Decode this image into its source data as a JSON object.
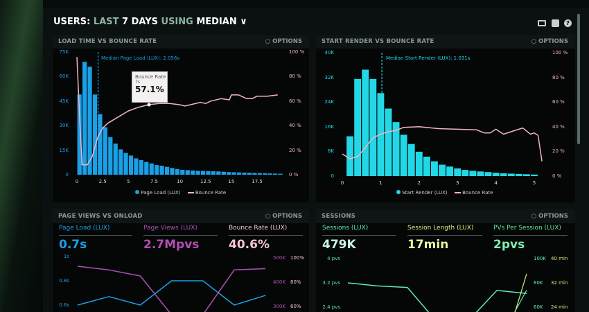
{
  "header": {
    "prefix": "USERS:",
    "last": "LAST",
    "days": "7 DAYS",
    "using": "USING",
    "method": "MEDIAN",
    "icons": [
      "monitor-icon",
      "share-icon",
      "help-icon"
    ]
  },
  "options_label": "OPTIONS",
  "colors": {
    "page_load": "#1aa0e6",
    "bounce": "#f3b3c6",
    "start_render": "#22d8e6",
    "page_views": "#b050b0",
    "sessions": "#5ee8c2",
    "session_length": "#d7f07a"
  },
  "chart_data": [
    {
      "type": "bar",
      "title": "LOAD TIME VS BOUNCE RATE",
      "xticks": [
        "0",
        "2.5",
        "5",
        "7.5",
        "10",
        "12.5",
        "15",
        "17.5"
      ],
      "xtick_values": [
        0,
        2.5,
        5,
        7.5,
        10,
        12.5,
        15,
        17.5
      ],
      "yticks_left": [
        "0",
        "15K",
        "30K",
        "45K",
        "60K",
        "75K"
      ],
      "yticks_right": [
        "0 %",
        "20 %",
        "40 %",
        "60 %",
        "80 %",
        "100 %"
      ],
      "ylim_left": [
        0,
        75
      ],
      "ylim_right": [
        0,
        100
      ],
      "median_label": "Median Page Load (LUX): 2.056s",
      "median": 2.056,
      "bar_width": 0.5,
      "bars": [
        49,
        69,
        66,
        49,
        37,
        29,
        23,
        19,
        15.5,
        13.3,
        11.7,
        10,
        8.9,
        7.8,
        6.9,
        5.9,
        5.5,
        4.8,
        4.1,
        3.5,
        3,
        2.8,
        2.6,
        2.4,
        2.3,
        2.2,
        2.1,
        2,
        1.8,
        1.6,
        1.5,
        1.4,
        1.3,
        1.2,
        1.1,
        1,
        0.9,
        0.8,
        0.7,
        0.6
      ],
      "line": {
        "name": "Bounce Rate",
        "x": [
          0,
          0.3,
          0.5,
          1,
          1.5,
          2,
          2.5,
          3,
          4,
          5,
          6,
          7,
          8,
          9,
          10,
          10.5,
          11,
          12,
          12.5,
          13,
          14,
          14.8,
          15,
          15.7,
          16.5,
          17,
          17.5,
          18.5,
          19.5
        ],
        "y": [
          96,
          40,
          8,
          8,
          15,
          30,
          38,
          42,
          47,
          52,
          55,
          57.1,
          58,
          58,
          57,
          56,
          57,
          59,
          58,
          60,
          62,
          61,
          65,
          65,
          62,
          62,
          64,
          64,
          65
        ]
      },
      "tooltip": {
        "title": "Bounce Rate",
        "x": "7s",
        "value": "57.1%"
      },
      "legend": [
        "Page Load (LUX)",
        "Bounce Rate"
      ]
    },
    {
      "type": "bar",
      "title": "START RENDER VS BOUNCE RATE",
      "xticks": [
        "0",
        "1",
        "2",
        "3",
        "4",
        "5"
      ],
      "xtick_values": [
        0,
        1,
        2,
        3,
        4,
        5
      ],
      "yticks_left": [
        "0",
        "8K",
        "16K",
        "24K",
        "32K",
        "40K"
      ],
      "yticks_right": [
        "0 %",
        "20 %",
        "40 %",
        "60 %",
        "80 %",
        "100 %"
      ],
      "ylim_left": [
        0,
        40
      ],
      "ylim_right": [
        0,
        100
      ],
      "median_label": "Median Start Render (LUX): 1.031s",
      "median": 1.031,
      "bar_width": 0.2,
      "bars": [
        12.9,
        31.5,
        34.5,
        31.5,
        26.9,
        21.9,
        17.5,
        13.4,
        10.4,
        7.9,
        6.3,
        4.8,
        3.7,
        3.1,
        2.5,
        2,
        1.7,
        1.5,
        1.3,
        1.1,
        0.9,
        0.8,
        0.7,
        0.6,
        0.5
      ],
      "line": {
        "name": "Bounce Rate",
        "x": [
          0,
          0.2,
          0.4,
          0.6,
          0.8,
          1,
          1.2,
          1.4,
          1.6,
          2,
          2.5,
          3,
          3.5,
          3.7,
          3.85,
          4,
          4.2,
          4.5,
          4.7,
          4.9,
          5,
          5.1,
          5.2
        ],
        "y": [
          18,
          14,
          16,
          23,
          31,
          34,
          36,
          37,
          39.5,
          40,
          38.5,
          38,
          37.5,
          35,
          35,
          38,
          34,
          37,
          39,
          34,
          35,
          33,
          12
        ]
      },
      "legend": [
        "Start Render (LUX)",
        "Bounce Rate"
      ]
    },
    {
      "type": "line",
      "title": "PAGE VIEWS VS ONLOAD",
      "metrics": [
        {
          "label": "Page Load (LUX)",
          "value": "0.7s"
        },
        {
          "label": "Page Views (LUX)",
          "value": "2.7Mpvs"
        },
        {
          "label": "Bounce Rate (LUX)",
          "value": "40.6%"
        }
      ],
      "yticks_left": [
        "1s",
        "0.8s",
        "0.6s"
      ],
      "yticks_right1": [
        "500K",
        "400K",
        "300K"
      ],
      "yticks_right2": [
        "100%",
        "80%",
        "60%"
      ],
      "series": [
        {
          "x": [
            0,
            1,
            2,
            3,
            4,
            5,
            6
          ],
          "y": [
            0.6,
            0.67,
            0.6,
            0.8,
            0.8,
            0.6,
            0.68
          ]
        },
        {
          "x": [
            0,
            1,
            2,
            3,
            4,
            5,
            6
          ],
          "y": [
            460,
            445,
            420,
            260,
            260,
            445,
            450
          ]
        }
      ]
    },
    {
      "type": "line",
      "title": "SESSIONS",
      "metrics": [
        {
          "label": "Sessions (LUX)",
          "value": "479K"
        },
        {
          "label": "Session Length (LUX)",
          "value": "17min"
        },
        {
          "label": "PVs Per Session (LUX)",
          "value": "2pvs"
        }
      ],
      "yticks_left": [
        "4 pvs",
        "3.2 pvs",
        "2.4 pvs"
      ],
      "yticks_right1": [
        "100K",
        "80K",
        "60K"
      ],
      "yticks_right2": [
        "40 min",
        "32 min",
        "24 min"
      ],
      "series": [
        {
          "x": [
            0,
            1,
            2,
            3,
            4,
            5,
            6
          ],
          "y": [
            3.2,
            3.1,
            3.05,
            1.9,
            1.9,
            2.95,
            2.85
          ]
        },
        {
          "x": [
            5.6,
            6
          ],
          "y": [
            56,
            74
          ]
        },
        {
          "x": [
            5.6,
            6
          ],
          "y": [
            22,
            35
          ]
        }
      ]
    }
  ]
}
